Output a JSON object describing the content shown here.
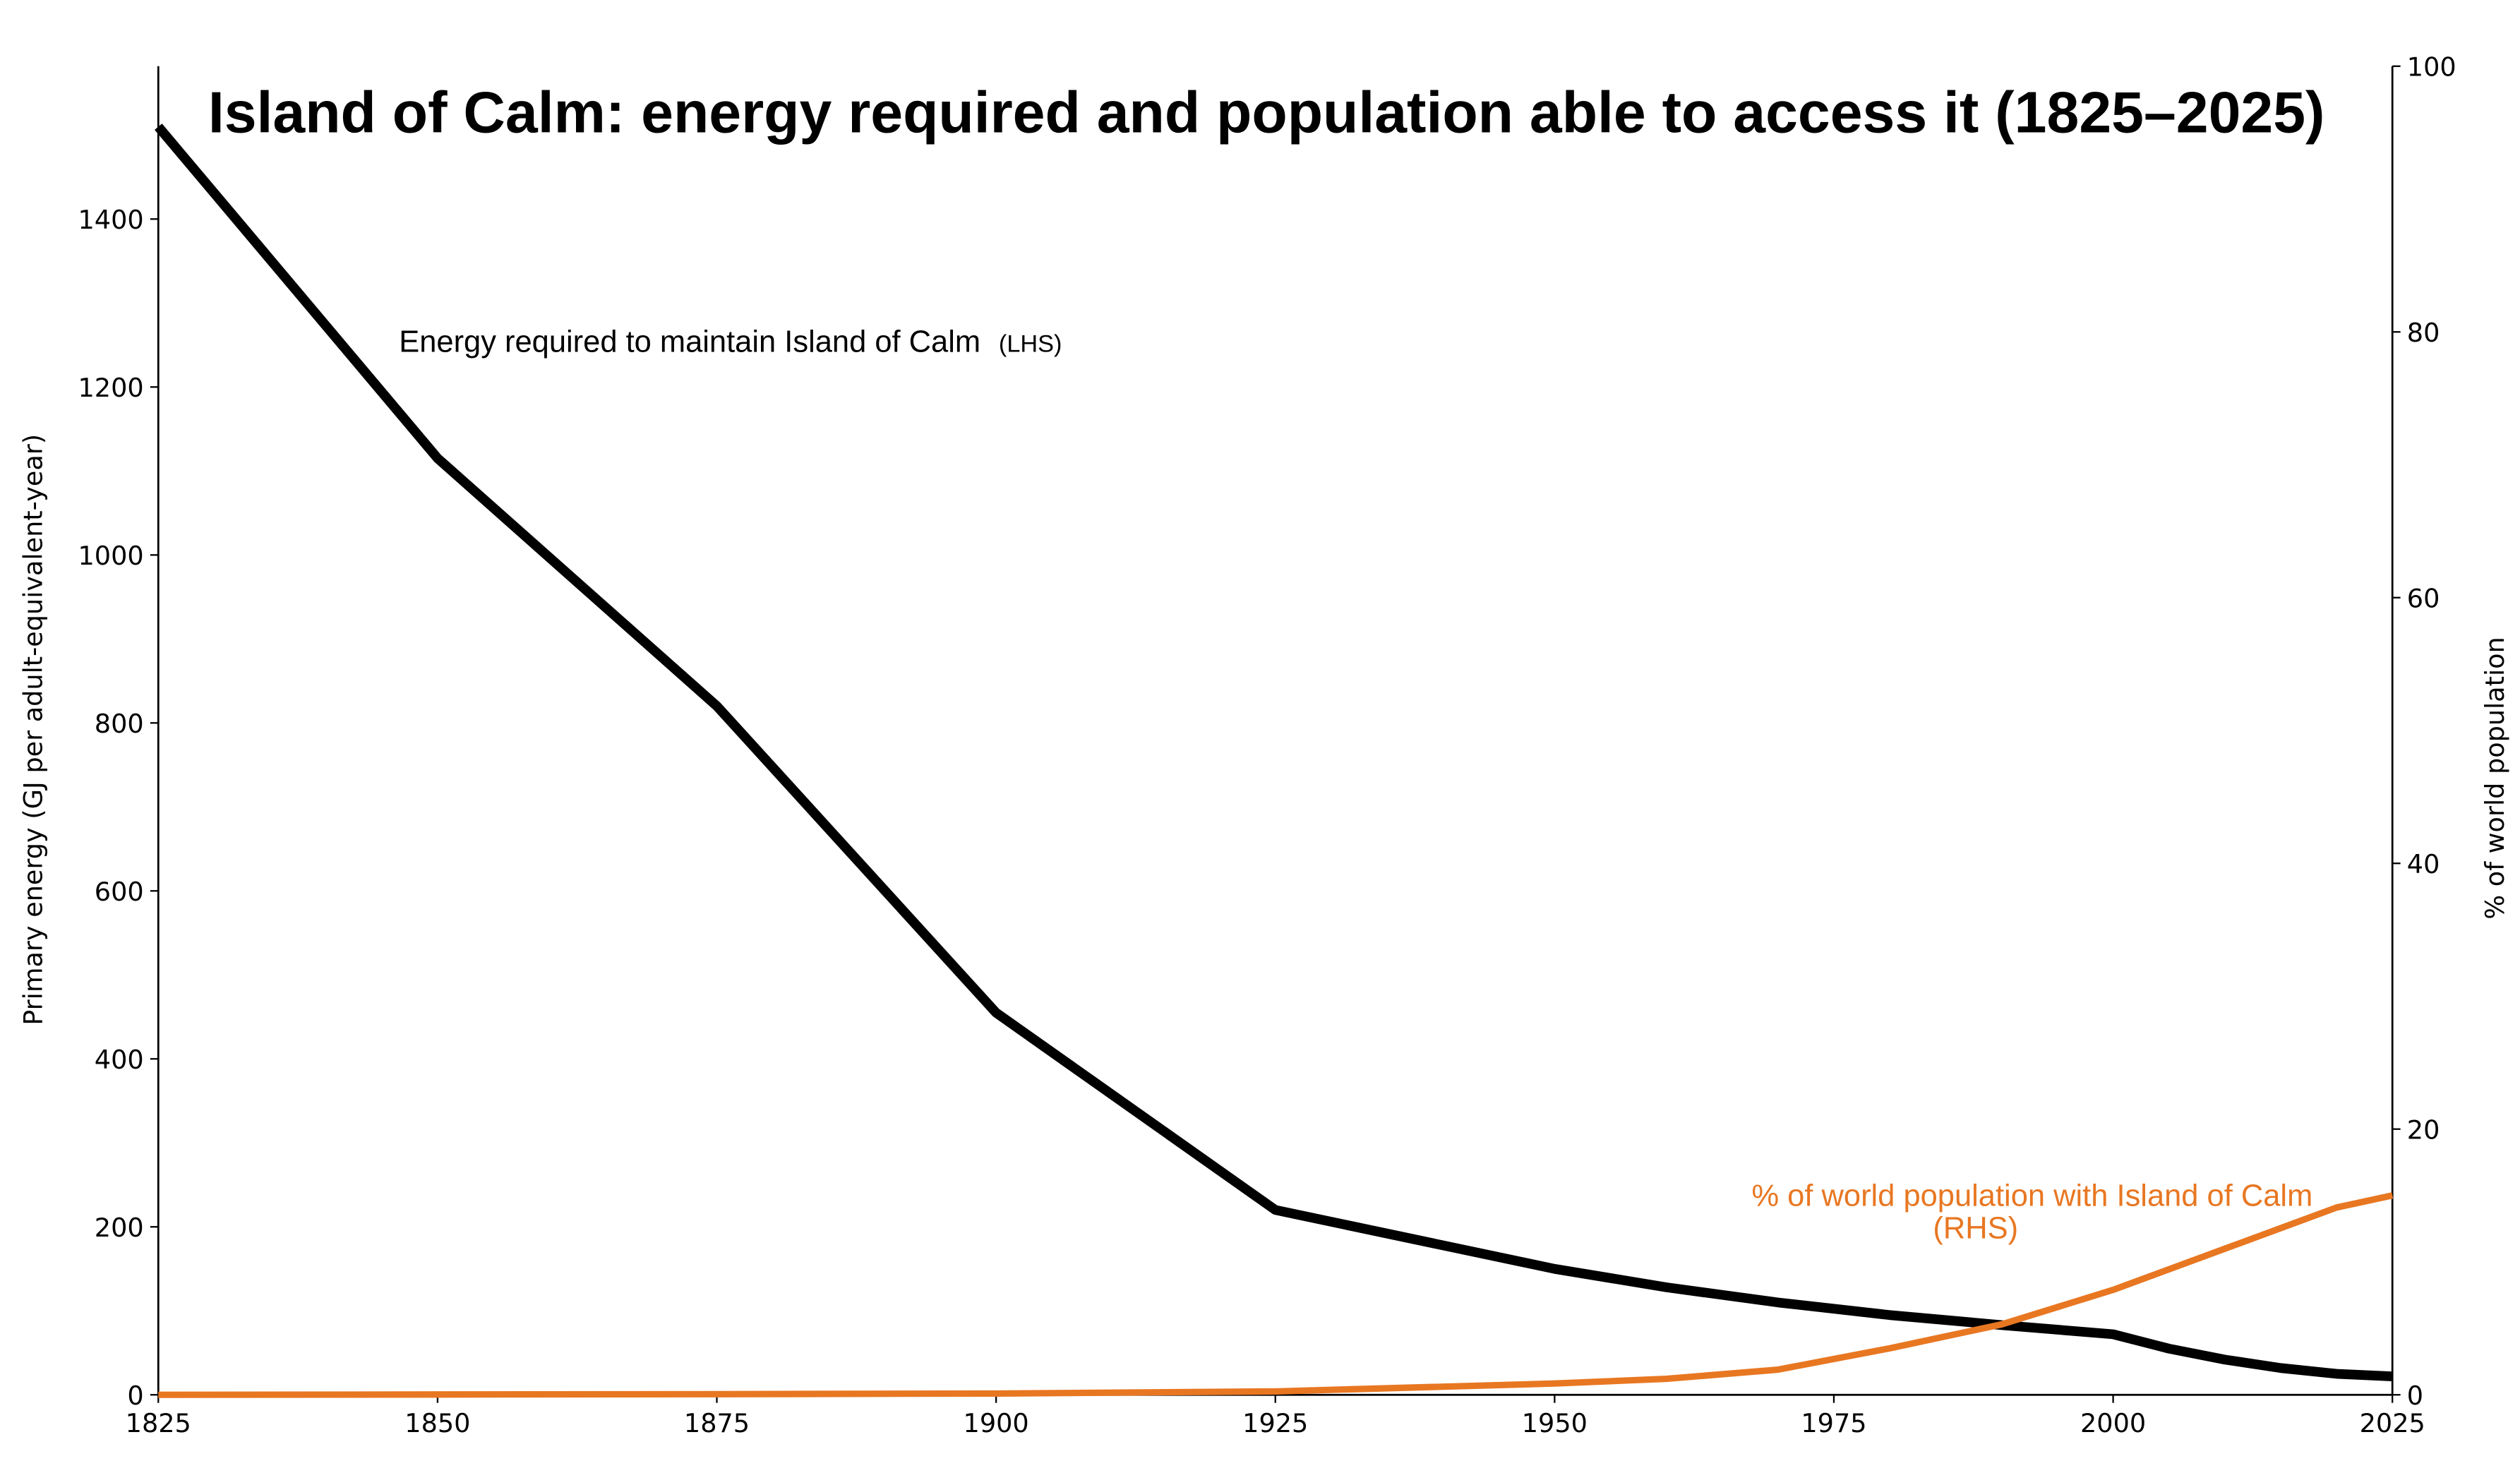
{
  "chart_data": {
    "type": "line",
    "title": "Island of Calm: energy required and population able to access it (1825–2025)",
    "xlabel": "",
    "ylabel": "Primary energy (GJ per adult-equivalent-year)",
    "ylabel_right": "% of world population",
    "xlim": [
      1825,
      2025
    ],
    "ylim": [
      0,
      1582
    ],
    "ylim_right": [
      0,
      100
    ],
    "xticks": [
      1825,
      1850,
      1875,
      1900,
      1925,
      1950,
      1975,
      2000,
      2025
    ],
    "yticks": [
      0,
      200,
      400,
      600,
      800,
      1000,
      1200,
      1400
    ],
    "yticks_right": [
      0,
      20,
      40,
      60,
      80,
      100
    ],
    "grid": false,
    "series": [
      {
        "name": "Energy required to maintain Island of Calm",
        "name_suffix": "(LHS)",
        "axis": "left",
        "color": "#000000",
        "x": [
          1825,
          1850,
          1875,
          1900,
          1925,
          1950,
          1960,
          1970,
          1980,
          1990,
          2000,
          2005,
          2010,
          2015,
          2020,
          2025
        ],
        "y": [
          1510,
          1115,
          820,
          455,
          220,
          150,
          128,
          110,
          95,
          83,
          72,
          55,
          42,
          32,
          25,
          22
        ]
      },
      {
        "name": "% of world population with Island of Calm",
        "name_suffix": "(RHS)",
        "axis": "right",
        "color": "#E87722",
        "x": [
          1825,
          1875,
          1900,
          1925,
          1950,
          1960,
          1970,
          1980,
          1990,
          2000,
          2010,
          2020,
          2025
        ],
        "y": [
          0,
          0.05,
          0.1,
          0.25,
          0.85,
          1.2,
          1.9,
          3.5,
          5.3,
          7.9,
          11,
          14.1,
          15
        ]
      }
    ]
  }
}
